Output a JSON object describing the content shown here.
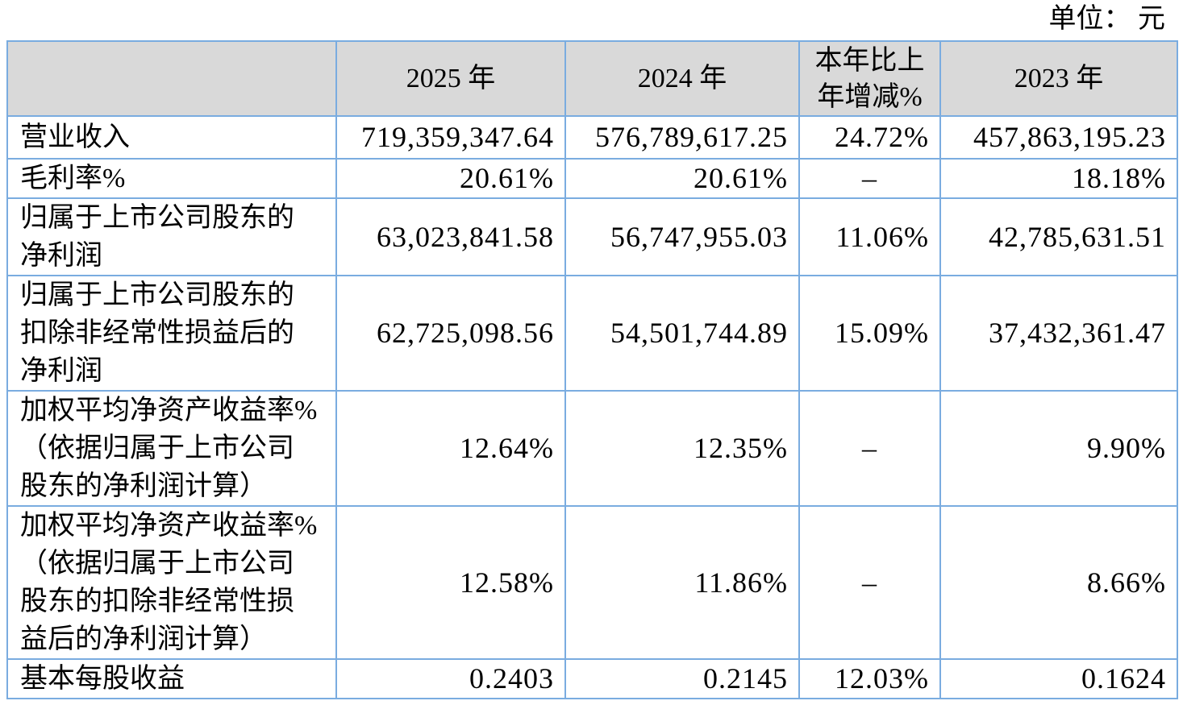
{
  "meta": {
    "unit_label": "单位： 元"
  },
  "colors": {
    "border": "#7aace0",
    "header_bg": "#d9d9d9",
    "text": "#000000"
  },
  "table": {
    "columns": [
      "",
      "2025 年",
      "2024 年",
      "本年比上\n年增减%",
      "2023 年"
    ],
    "rows": [
      {
        "label": "营业收入",
        "y2025": "719,359,347.64",
        "y2024": "576,789,617.25",
        "yoy": "24.72%",
        "y2023": "457,863,195.23"
      },
      {
        "label": "毛利率%",
        "y2025": "20.61%",
        "y2024": "20.61%",
        "yoy": "–",
        "y2023": "18.18%"
      },
      {
        "label": "归属于上市公司股东的\n净利润",
        "y2025": "63,023,841.58",
        "y2024": "56,747,955.03",
        "yoy": "11.06%",
        "y2023": "42,785,631.51"
      },
      {
        "label": "归属于上市公司股东的\n扣除非经常性损益后的\n净利润",
        "y2025": "62,725,098.56",
        "y2024": "54,501,744.89",
        "yoy": "15.09%",
        "y2023": "37,432,361.47"
      },
      {
        "label": "加权平均净资产收益率%\n（依据归属于上市公司\n股东的净利润计算）",
        "y2025": "12.64%",
        "y2024": "12.35%",
        "yoy": "–",
        "y2023": "9.90%"
      },
      {
        "label": "加权平均净资产收益率%\n（依据归属于上市公司\n股东的扣除非经常性损\n益后的净利润计算）",
        "y2025": "12.58%",
        "y2024": "11.86%",
        "yoy": "–",
        "y2023": "8.66%"
      },
      {
        "label": "基本每股收益",
        "y2025": "0.2403",
        "y2024": "0.2145",
        "yoy": "12.03%",
        "y2023": "0.1624"
      }
    ]
  }
}
